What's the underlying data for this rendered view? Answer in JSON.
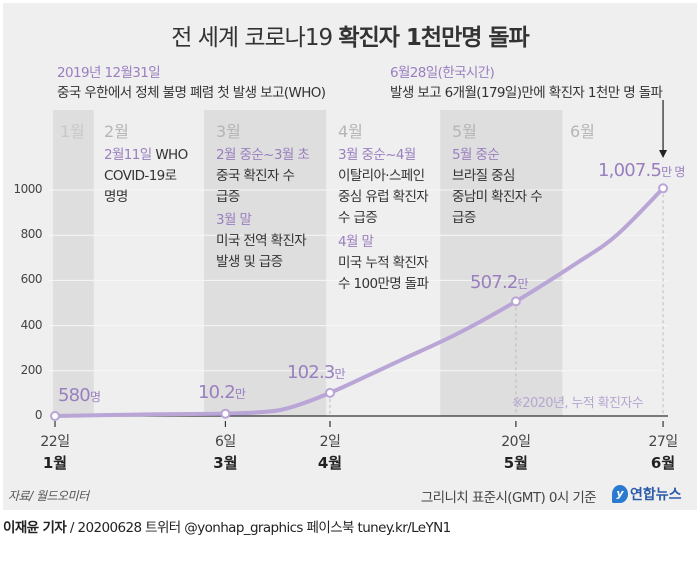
{
  "title": {
    "regular": "전 세계 코로나19 ",
    "bold": "확진자 1천만명 돌파"
  },
  "top_left": {
    "date": "2019년 12월31일",
    "text": "중국 우한에서 정체 불명 폐렴 첫 발생 보고(WHO)"
  },
  "top_right": {
    "date": "6월28일(한국시간)",
    "text": "발생 보고 6개월(179일)만에 확진자 1천만 명 돌파"
  },
  "months": [
    "1월",
    "2월",
    "3월",
    "4월",
    "5월",
    "6월"
  ],
  "annotations": {
    "feb": {
      "head": "2월11일",
      "lines": [
        "WHO",
        "COVID-19로",
        "명명"
      ]
    },
    "mar": {
      "head1": "2월 중순~3월 초",
      "lines1": [
        "중국 확진자 수",
        "급증"
      ],
      "head2": "3월 말",
      "lines2": [
        "미국 전역 확진자",
        "발생 및 급증"
      ]
    },
    "apr": {
      "head1": "3월 중순~4월",
      "lines1": [
        "이탈리아·스페인",
        "중심 유럽 확진자",
        "수 급증"
      ],
      "head2": "4월 말",
      "lines2": [
        "미국 누적 확진자",
        "수 100만명 돌파"
      ]
    },
    "may": {
      "head": "5월 중순",
      "lines": [
        "브라질 중심",
        "중남미 확진자 수",
        "급증"
      ]
    }
  },
  "chart_data": {
    "type": "line",
    "title": "전 세계 코로나19 확진자 1천만명 돌파",
    "unit": "만 명",
    "note": "※2020년, 누적 확진자수",
    "ylim": [
      0,
      1000
    ],
    "yticks": [
      "0",
      "200",
      "400",
      "600",
      "800",
      "1000"
    ],
    "xlim": [
      "2020-01-22",
      "2020-06-27"
    ],
    "shaded_months": [
      "2020-01",
      "2020-03",
      "2020-05"
    ],
    "xticks": [
      {
        "date": "2020-01-22",
        "day": "22일",
        "month": "1월"
      },
      {
        "date": "2020-03-06",
        "day": "6일",
        "month": "3월"
      },
      {
        "date": "2020-04-02",
        "day": "2일",
        "month": "4월"
      },
      {
        "date": "2020-05-20",
        "day": "20일",
        "month": "5월"
      },
      {
        "date": "2020-06-27",
        "day": "27일",
        "month": "6월"
      }
    ],
    "points": [
      {
        "date": "2020-01-22",
        "value": 0.058,
        "label": "580",
        "unit": "명"
      },
      {
        "date": "2020-03-06",
        "value": 10.2,
        "label": "10.2",
        "unit": "만"
      },
      {
        "date": "2020-04-02",
        "value": 102.3,
        "label": "102.3",
        "unit": "만"
      },
      {
        "date": "2020-05-20",
        "value": 507.2,
        "label": "507.2",
        "unit": "만"
      },
      {
        "date": "2020-06-27",
        "value": 1007.5,
        "label": "1,007.5",
        "unit": "만 명"
      }
    ],
    "series": [
      {
        "date": "2020-01-22",
        "value": 0.058
      },
      {
        "date": "2020-02-15",
        "value": 7
      },
      {
        "date": "2020-03-06",
        "value": 10.2
      },
      {
        "date": "2020-03-15",
        "value": 17
      },
      {
        "date": "2020-03-22",
        "value": 34
      },
      {
        "date": "2020-04-02",
        "value": 102.3
      },
      {
        "date": "2020-04-20",
        "value": 245
      },
      {
        "date": "2020-05-05",
        "value": 365
      },
      {
        "date": "2020-05-20",
        "value": 507.2
      },
      {
        "date": "2020-06-05",
        "value": 680
      },
      {
        "date": "2020-06-15",
        "value": 800
      },
      {
        "date": "2020-06-27",
        "value": 1007.5
      }
    ],
    "colors": {
      "line": "#b9a5d6",
      "label": "#9a7fbf",
      "band": "#dedede",
      "background": "#efefef"
    }
  },
  "footer": {
    "source": "자료/ 월드오미터",
    "basis": "그리니치 표준시(GMT) 0시 기준",
    "logo": "연합뉴스",
    "credit_name": "이재윤 기자",
    "credit_rest": " / 20200628   트위터 @yonhap_graphics  페이스북 tuney.kr/LeYN1"
  }
}
